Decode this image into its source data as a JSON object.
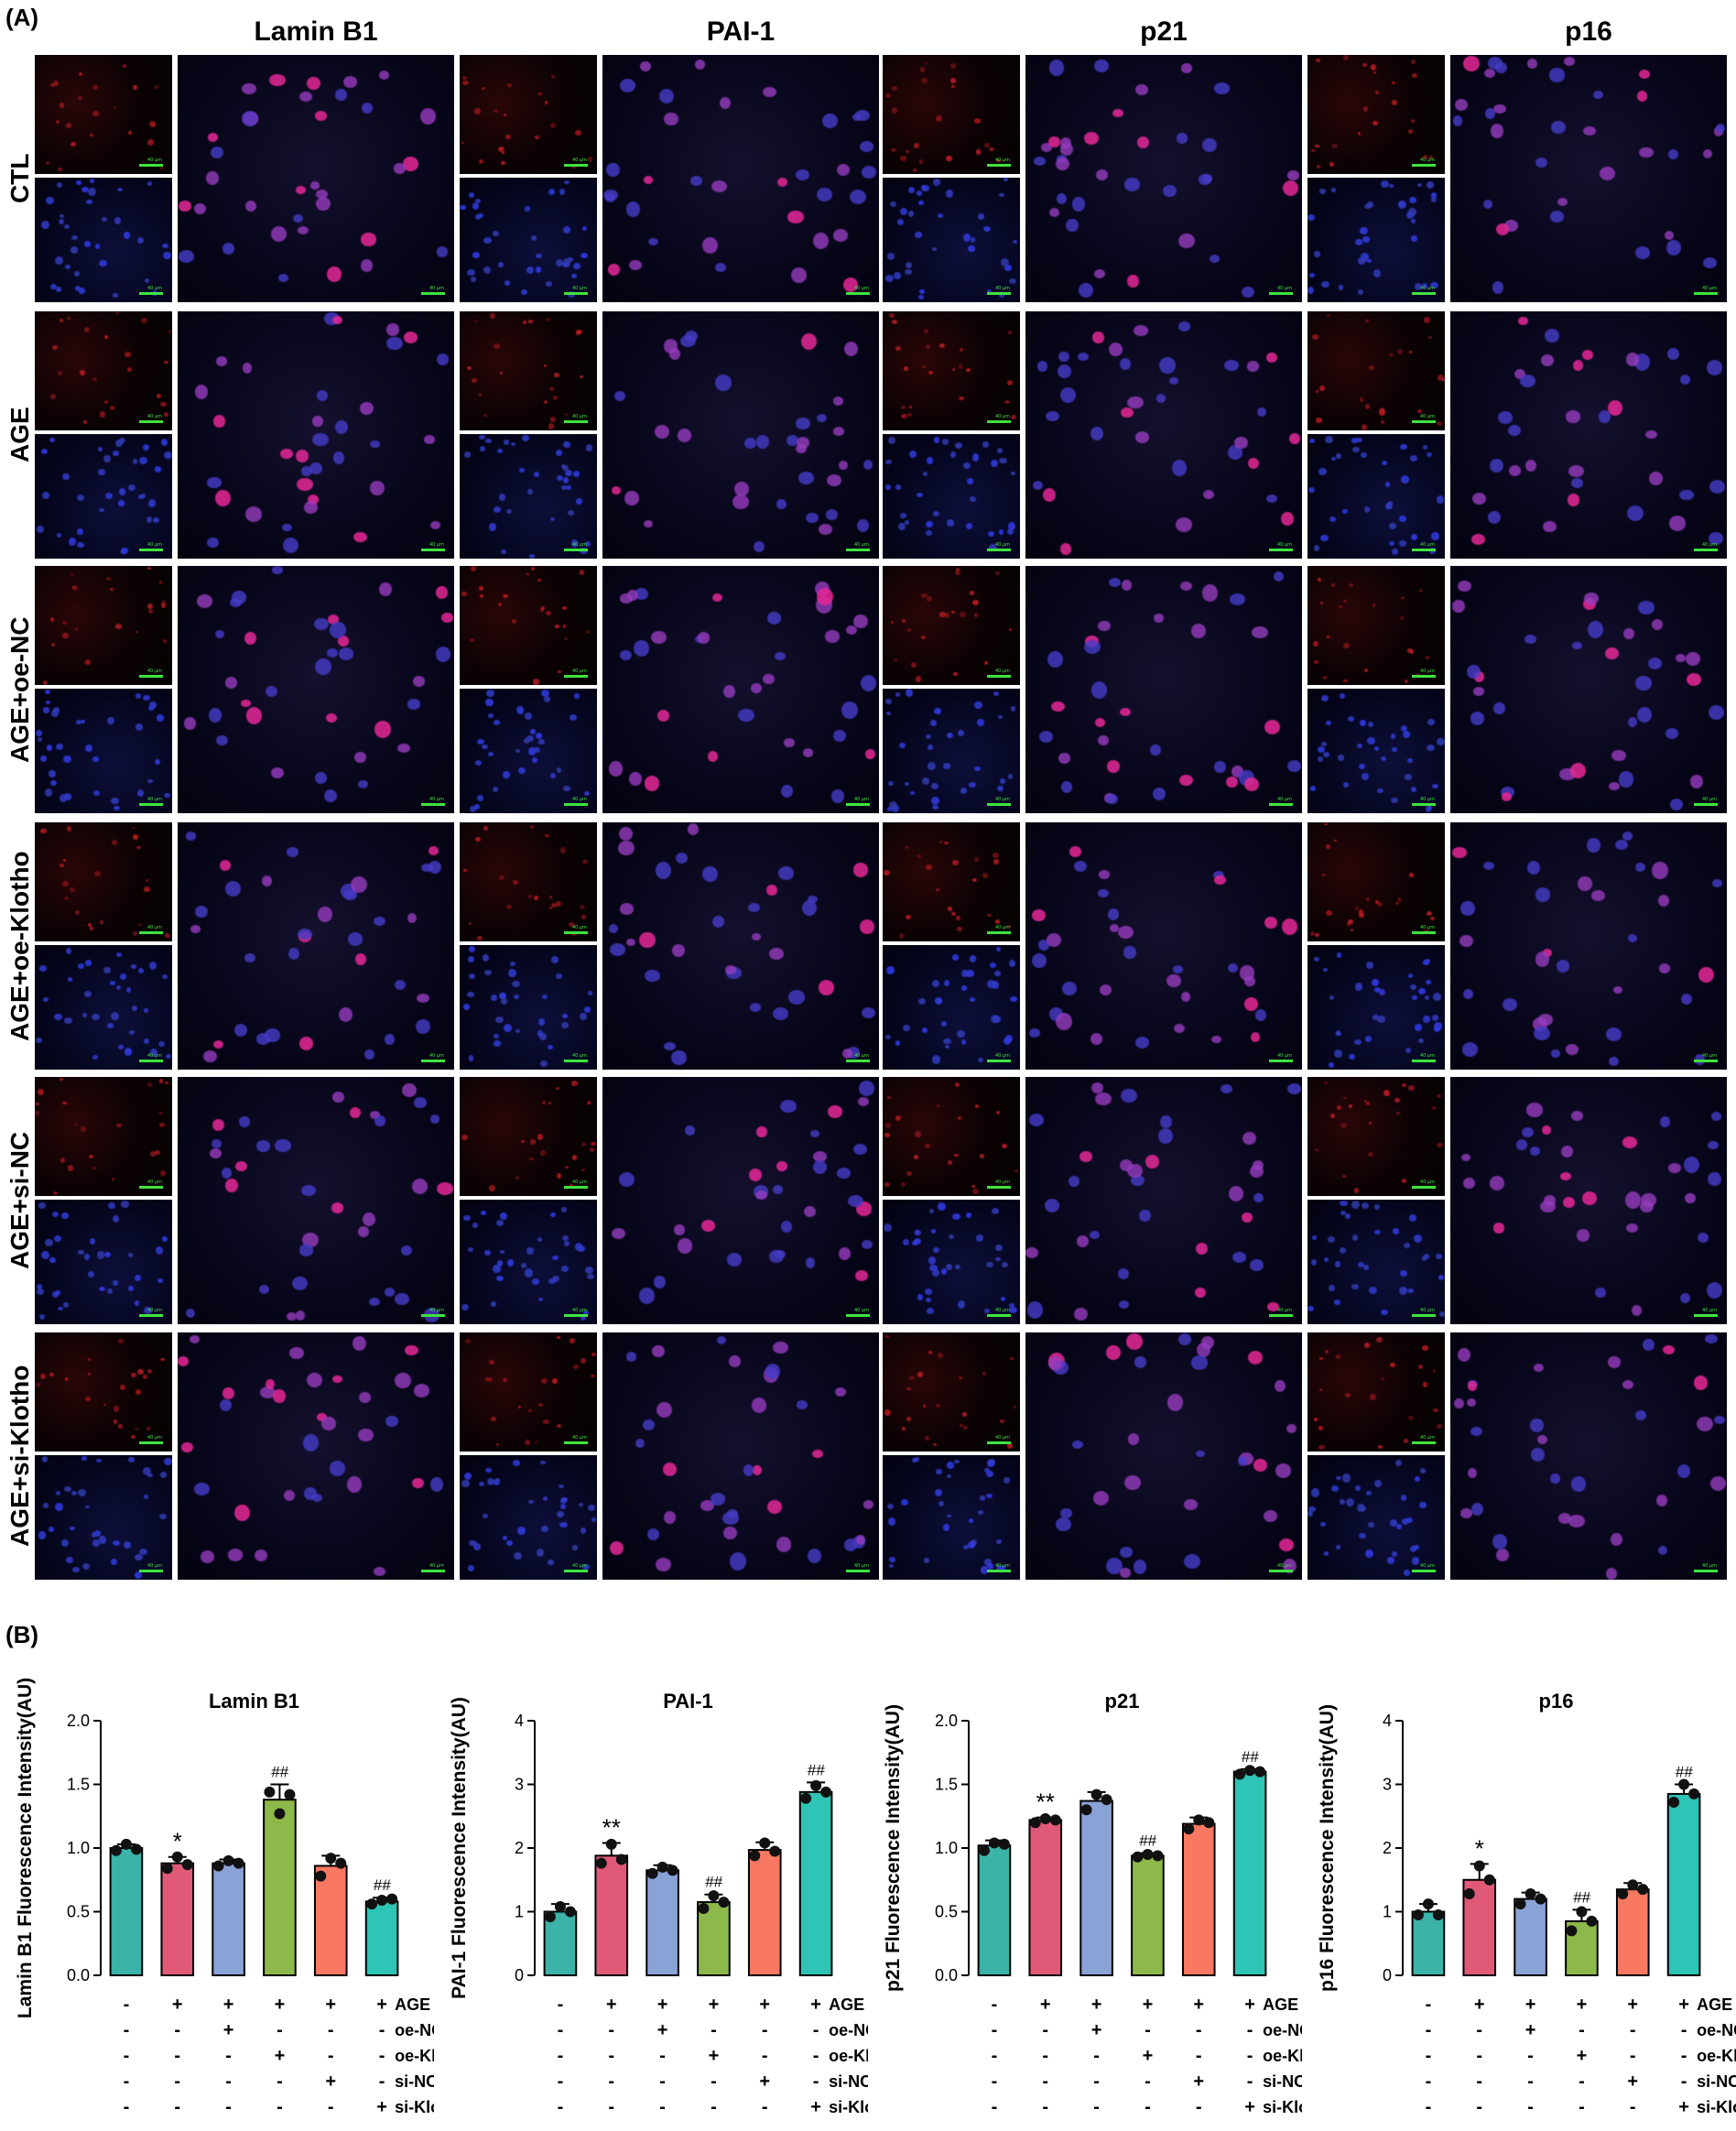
{
  "panel_labels": {
    "a": "(A)",
    "b": "(B)"
  },
  "columns": [
    "Lamin B1",
    "PAI-1",
    "p21",
    "p16"
  ],
  "rows": [
    "CTL",
    "AGE",
    "AGE+oe-NC",
    "AGE+oe-Klotho",
    "AGE+si-NC",
    "AGE+si-Klotho"
  ],
  "scale_bar_label": "40 μm",
  "colors": {
    "teal": "#3bb3a8",
    "pink": "#e05a78",
    "blue": "#8aa3d6",
    "green": "#8db84a",
    "orange": "#f87862",
    "teal2": "#2ec4b6",
    "nucleus_blue": "#3333cc",
    "marker_red": "#e02a3a",
    "merge_purple": "#8a3fa8"
  },
  "treatments": {
    "labels": [
      "AGE",
      "oe-NC",
      "oe-Klotho",
      "si-NC",
      "si-Klotho"
    ],
    "signs": [
      [
        "-",
        "+",
        "+",
        "+",
        "+",
        "+"
      ],
      [
        "-",
        "-",
        "+",
        "-",
        "-",
        "-"
      ],
      [
        "-",
        "-",
        "-",
        "+",
        "-",
        "-"
      ],
      [
        "-",
        "-",
        "-",
        "-",
        "+",
        "-"
      ],
      [
        "-",
        "-",
        "-",
        "-",
        "-",
        "+"
      ]
    ]
  },
  "chart_data": [
    {
      "type": "bar",
      "title": "Lamin B1",
      "ylabel": "Lamin B1 Fluorescence Intensity(AU)",
      "ylim": [
        0,
        2.0
      ],
      "yticks": [
        "0.0",
        "0.5",
        "1.0",
        "1.5",
        "2.0"
      ],
      "yticks_values": [
        0,
        0.5,
        1.0,
        1.5,
        2.0
      ],
      "values": [
        1.0,
        0.88,
        0.88,
        1.38,
        0.86,
        0.58
      ],
      "errors": [
        0.03,
        0.05,
        0.03,
        0.12,
        0.08,
        0.03
      ],
      "points": [
        [
          0.98,
          1.03,
          0.99
        ],
        [
          0.84,
          0.93,
          0.87
        ],
        [
          0.86,
          0.9,
          0.88
        ],
        [
          1.44,
          1.27,
          1.42
        ],
        [
          0.78,
          0.92,
          0.88
        ],
        [
          0.56,
          0.59,
          0.6
        ]
      ],
      "annotations": [
        "",
        "*",
        "",
        "##",
        "",
        "##"
      ]
    },
    {
      "type": "bar",
      "title": "PAI-1",
      "ylabel": "PAI-1 Fluorescence Intensity(AU)",
      "ylim": [
        0,
        4
      ],
      "yticks": [
        "0",
        "1",
        "2",
        "3",
        "4"
      ],
      "yticks_values": [
        0,
        1,
        2,
        3,
        4
      ],
      "values": [
        1.0,
        1.88,
        1.65,
        1.15,
        1.97,
        2.88
      ],
      "errors": [
        0.12,
        0.2,
        0.08,
        0.12,
        0.12,
        0.15
      ],
      "points": [
        [
          0.92,
          1.08,
          1.0
        ],
        [
          1.76,
          2.06,
          1.82
        ],
        [
          1.6,
          1.7,
          1.65
        ],
        [
          1.05,
          1.25,
          1.15
        ],
        [
          1.88,
          2.08,
          1.95
        ],
        [
          2.78,
          2.98,
          2.88
        ]
      ],
      "annotations": [
        "",
        "**",
        "",
        "##",
        "",
        "##"
      ]
    },
    {
      "type": "bar",
      "title": "p21",
      "ylabel": "p21 Fluorescence Intensity(AU)",
      "ylim": [
        0,
        2.0
      ],
      "yticks": [
        "0.0",
        "0.5",
        "1.0",
        "1.5",
        "2.0"
      ],
      "yticks_values": [
        0,
        0.5,
        1.0,
        1.5,
        2.0
      ],
      "values": [
        1.02,
        1.22,
        1.37,
        0.94,
        1.19,
        1.6
      ],
      "errors": [
        0.04,
        0.02,
        0.07,
        0.02,
        0.05,
        0.02
      ],
      "points": [
        [
          0.98,
          1.04,
          1.03
        ],
        [
          1.2,
          1.23,
          1.22
        ],
        [
          1.3,
          1.42,
          1.38
        ],
        [
          0.93,
          0.95,
          0.94
        ],
        [
          1.15,
          1.22,
          1.2
        ],
        [
          1.58,
          1.61,
          1.6
        ]
      ],
      "annotations": [
        "",
        "**",
        "",
        "##",
        "",
        "##"
      ]
    },
    {
      "type": "bar",
      "title": "p16",
      "ylabel": "p16 Fluorescence Intensity(AU)",
      "ylim": [
        0,
        4
      ],
      "yticks": [
        "0",
        "1",
        "2",
        "3",
        "4"
      ],
      "yticks_values": [
        0,
        1,
        2,
        3,
        4
      ],
      "values": [
        1.0,
        1.5,
        1.2,
        0.85,
        1.35,
        2.85
      ],
      "errors": [
        0.12,
        0.25,
        0.1,
        0.18,
        0.1,
        0.15
      ],
      "points": [
        [
          0.95,
          1.12,
          0.95
        ],
        [
          1.28,
          1.72,
          1.5
        ],
        [
          1.12,
          1.28,
          1.2
        ],
        [
          0.7,
          1.0,
          0.85
        ],
        [
          1.28,
          1.42,
          1.35
        ],
        [
          2.72,
          3.0,
          2.85
        ]
      ],
      "annotations": [
        "",
        "*",
        "",
        "##",
        "",
        "##"
      ]
    }
  ]
}
